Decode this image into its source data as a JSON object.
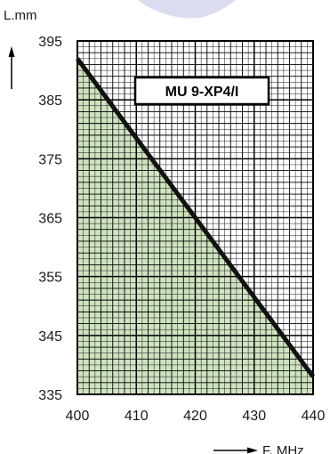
{
  "chart_data": {
    "type": "line",
    "title": "MU 9-XP4/I",
    "xlabel": "F. MHz",
    "ylabel": "L.mm",
    "xlim": [
      400,
      440
    ],
    "ylim": [
      335,
      395
    ],
    "x_ticks": [
      "400",
      "410",
      "420",
      "430",
      "440"
    ],
    "y_ticks": [
      "395",
      "385",
      "375",
      "365",
      "355",
      "345",
      "335"
    ],
    "grid": true,
    "series": [
      {
        "x": [
          400,
          440
        ],
        "y": [
          392,
          338
        ]
      }
    ],
    "fill_under_line": true
  },
  "colors": {
    "fill": "#cfe3c0",
    "line": "#111111",
    "grid": "#000000",
    "decor": "#dcdcf0"
  }
}
